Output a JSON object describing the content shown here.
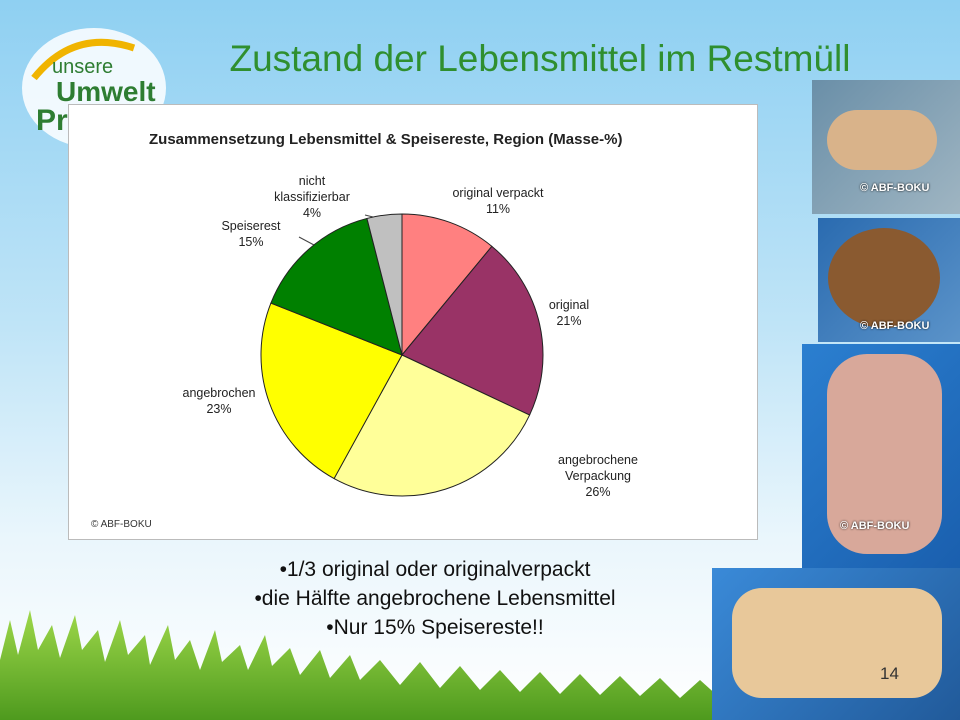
{
  "slide": {
    "title": "Zustand der Lebensmittel im Restmüll",
    "logo": [
      "unsere",
      "Umwelt",
      "Profis"
    ],
    "bullets": [
      "1/3 original oder originalverpackt",
      "die Hälfte angebrochene Lebensmittel",
      "Nur 15% Speisereste!!"
    ],
    "photo_captions": [
      "© ABF-BOKU",
      "© ABF-BOKU",
      "© ABF-BOKU"
    ],
    "page_number": "14"
  },
  "chart_data": {
    "type": "pie",
    "title": "Zusammensetzung Lebensmittel & Speisereste, Region (Masse-%)",
    "categories": [
      "original verpackt",
      "original",
      "angebrochene Verpackung",
      "angebrochen",
      "Speiserest",
      "nicht klassifizierbar"
    ],
    "values": [
      11,
      21,
      26,
      23,
      15,
      4
    ],
    "value_labels": [
      "11%",
      "21%",
      "26%",
      "23%",
      "15%",
      "4%"
    ],
    "colors": [
      "#ff8080",
      "#993366",
      "#ffff99",
      "#ffff00",
      "#008000",
      "#c0c0c0"
    ],
    "copyright": "© ABF-BOKU"
  }
}
